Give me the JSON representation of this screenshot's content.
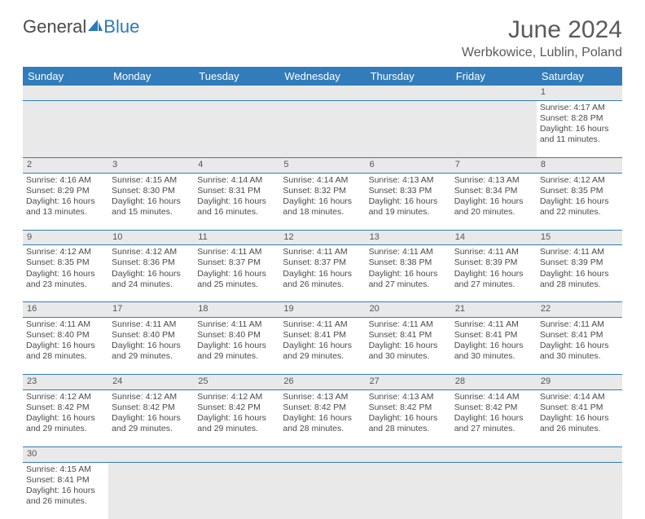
{
  "logo": {
    "general": "General",
    "blue": "Blue"
  },
  "title": "June 2024",
  "location": "Werbkowice, Lublin, Poland",
  "colors": {
    "header_bg": "#327cbb",
    "header_text": "#ffffff",
    "daynum_bg": "#e9e9e9",
    "border": "#327cbb",
    "text": "#4a4a4a",
    "logo_blue": "#2a7ab9"
  },
  "daysOfWeek": [
    "Sunday",
    "Monday",
    "Tuesday",
    "Wednesday",
    "Thursday",
    "Friday",
    "Saturday"
  ],
  "weeks": [
    [
      null,
      null,
      null,
      null,
      null,
      null,
      {
        "n": "1",
        "sr": "4:17 AM",
        "ss": "8:28 PM",
        "dl": "16 hours and 11 minutes."
      }
    ],
    [
      {
        "n": "2",
        "sr": "4:16 AM",
        "ss": "8:29 PM",
        "dl": "16 hours and 13 minutes."
      },
      {
        "n": "3",
        "sr": "4:15 AM",
        "ss": "8:30 PM",
        "dl": "16 hours and 15 minutes."
      },
      {
        "n": "4",
        "sr": "4:14 AM",
        "ss": "8:31 PM",
        "dl": "16 hours and 16 minutes."
      },
      {
        "n": "5",
        "sr": "4:14 AM",
        "ss": "8:32 PM",
        "dl": "16 hours and 18 minutes."
      },
      {
        "n": "6",
        "sr": "4:13 AM",
        "ss": "8:33 PM",
        "dl": "16 hours and 19 minutes."
      },
      {
        "n": "7",
        "sr": "4:13 AM",
        "ss": "8:34 PM",
        "dl": "16 hours and 20 minutes."
      },
      {
        "n": "8",
        "sr": "4:12 AM",
        "ss": "8:35 PM",
        "dl": "16 hours and 22 minutes."
      }
    ],
    [
      {
        "n": "9",
        "sr": "4:12 AM",
        "ss": "8:35 PM",
        "dl": "16 hours and 23 minutes."
      },
      {
        "n": "10",
        "sr": "4:12 AM",
        "ss": "8:36 PM",
        "dl": "16 hours and 24 minutes."
      },
      {
        "n": "11",
        "sr": "4:11 AM",
        "ss": "8:37 PM",
        "dl": "16 hours and 25 minutes."
      },
      {
        "n": "12",
        "sr": "4:11 AM",
        "ss": "8:37 PM",
        "dl": "16 hours and 26 minutes."
      },
      {
        "n": "13",
        "sr": "4:11 AM",
        "ss": "8:38 PM",
        "dl": "16 hours and 27 minutes."
      },
      {
        "n": "14",
        "sr": "4:11 AM",
        "ss": "8:39 PM",
        "dl": "16 hours and 27 minutes."
      },
      {
        "n": "15",
        "sr": "4:11 AM",
        "ss": "8:39 PM",
        "dl": "16 hours and 28 minutes."
      }
    ],
    [
      {
        "n": "16",
        "sr": "4:11 AM",
        "ss": "8:40 PM",
        "dl": "16 hours and 28 minutes."
      },
      {
        "n": "17",
        "sr": "4:11 AM",
        "ss": "8:40 PM",
        "dl": "16 hours and 29 minutes."
      },
      {
        "n": "18",
        "sr": "4:11 AM",
        "ss": "8:40 PM",
        "dl": "16 hours and 29 minutes."
      },
      {
        "n": "19",
        "sr": "4:11 AM",
        "ss": "8:41 PM",
        "dl": "16 hours and 29 minutes."
      },
      {
        "n": "20",
        "sr": "4:11 AM",
        "ss": "8:41 PM",
        "dl": "16 hours and 30 minutes."
      },
      {
        "n": "21",
        "sr": "4:11 AM",
        "ss": "8:41 PM",
        "dl": "16 hours and 30 minutes."
      },
      {
        "n": "22",
        "sr": "4:11 AM",
        "ss": "8:41 PM",
        "dl": "16 hours and 30 minutes."
      }
    ],
    [
      {
        "n": "23",
        "sr": "4:12 AM",
        "ss": "8:42 PM",
        "dl": "16 hours and 29 minutes."
      },
      {
        "n": "24",
        "sr": "4:12 AM",
        "ss": "8:42 PM",
        "dl": "16 hours and 29 minutes."
      },
      {
        "n": "25",
        "sr": "4:12 AM",
        "ss": "8:42 PM",
        "dl": "16 hours and 29 minutes."
      },
      {
        "n": "26",
        "sr": "4:13 AM",
        "ss": "8:42 PM",
        "dl": "16 hours and 28 minutes."
      },
      {
        "n": "27",
        "sr": "4:13 AM",
        "ss": "8:42 PM",
        "dl": "16 hours and 28 minutes."
      },
      {
        "n": "28",
        "sr": "4:14 AM",
        "ss": "8:42 PM",
        "dl": "16 hours and 27 minutes."
      },
      {
        "n": "29",
        "sr": "4:14 AM",
        "ss": "8:41 PM",
        "dl": "16 hours and 26 minutes."
      }
    ],
    [
      {
        "n": "30",
        "sr": "4:15 AM",
        "ss": "8:41 PM",
        "dl": "16 hours and 26 minutes."
      },
      null,
      null,
      null,
      null,
      null,
      null
    ]
  ],
  "labels": {
    "sunrise": "Sunrise:",
    "sunset": "Sunset:",
    "daylight": "Daylight:"
  }
}
